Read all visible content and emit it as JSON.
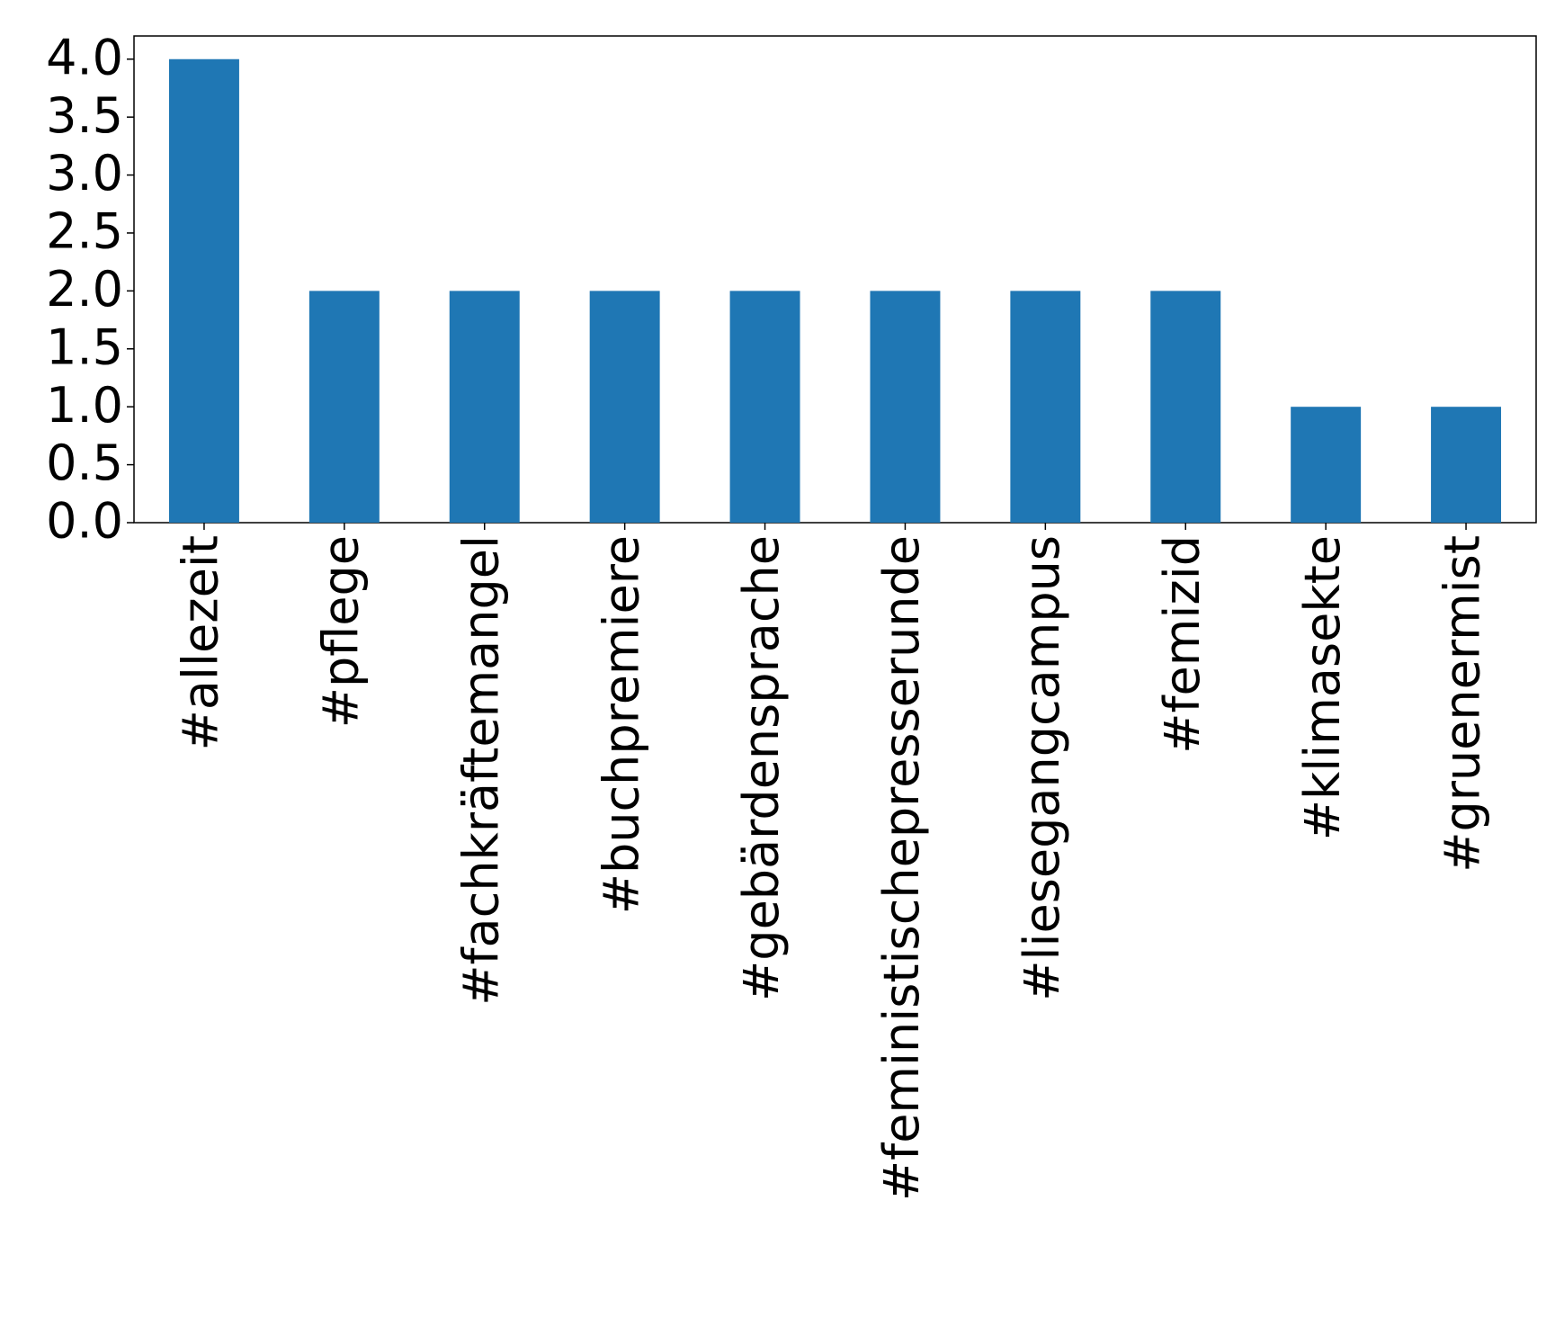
{
  "chart_data": {
    "type": "bar",
    "categories": [
      "#allezeit",
      "#pflege",
      "#fachkräftemangel",
      "#buchpremiere",
      "#gebärdensprache",
      "#feministischepresserunde",
      "#liesegangcampus",
      "#femizid",
      "#klimasekte",
      "#gruenermist"
    ],
    "values": [
      4,
      2,
      2,
      2,
      2,
      2,
      2,
      2,
      1,
      1
    ],
    "color": "#1f77b4",
    "ylim": [
      0,
      4.2
    ],
    "yticks": [
      {
        "value": 0,
        "label": "0.0"
      },
      {
        "value": 0.5,
        "label": "0.5"
      },
      {
        "value": 1,
        "label": "1.0"
      },
      {
        "value": 1.5,
        "label": "1.5"
      },
      {
        "value": 2,
        "label": "2.0"
      },
      {
        "value": 2.5,
        "label": "2.5"
      },
      {
        "value": 3,
        "label": "3.0"
      },
      {
        "value": 3.5,
        "label": "3.5"
      },
      {
        "value": 4,
        "label": "4.0"
      }
    ],
    "grid": false
  }
}
